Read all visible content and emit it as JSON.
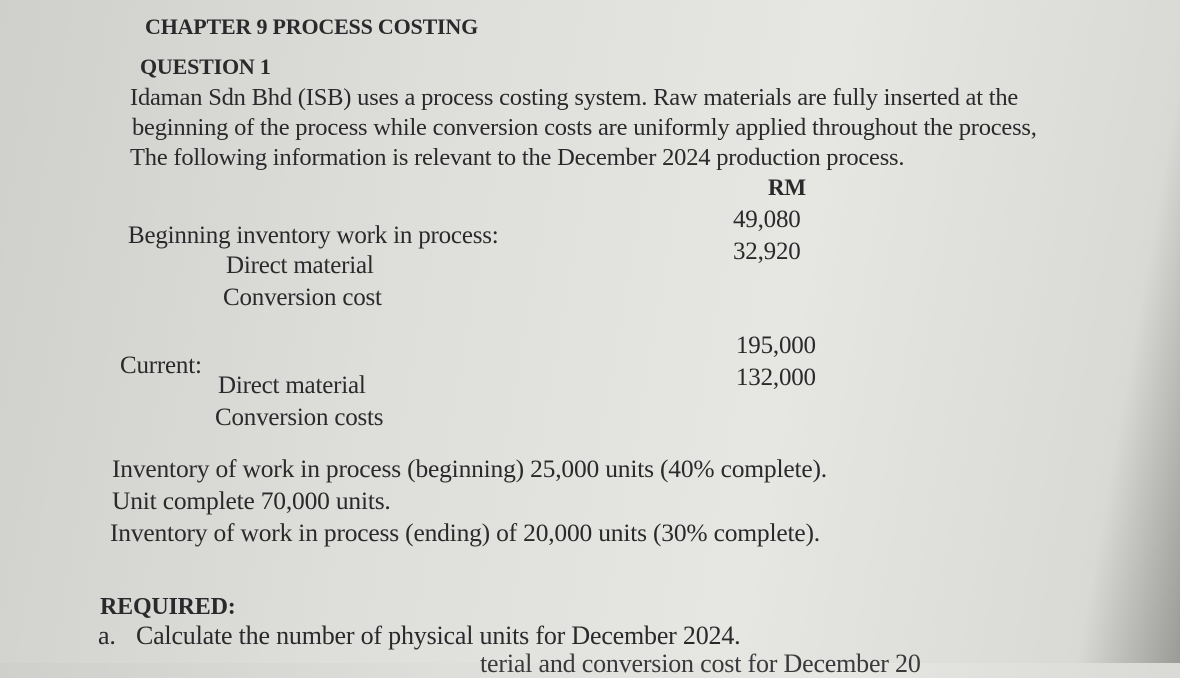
{
  "chapter_title": "CHAPTER 9  PROCESS COSTING",
  "question_label": "QUESTION 1",
  "intro_lines": [
    "Idaman Sdn Bhd (ISB) uses a process costing system.  Raw materials are fully inserted at the",
    "beginning of the process while conversion costs are uniformly applied throughout the process,",
    "The following information is relevant to the December 2024 production process."
  ],
  "currency_header": "RM",
  "beginning_inventory": {
    "heading": "Beginning inventory work in process:",
    "items": [
      {
        "label": "Direct material",
        "value": "49,080"
      },
      {
        "label": "Conversion cost",
        "value": "32,920"
      }
    ]
  },
  "current": {
    "heading": "Current:",
    "items": [
      {
        "label": "Direct material",
        "value": "195,000"
      },
      {
        "label": "Conversion costs",
        "value": "132,000"
      }
    ]
  },
  "unit_lines": [
    "Inventory of work in process (beginning) 25,000 units (40% complete).",
    "Unit complete 70,000 units.",
    "Inventory of work in process (ending) of 20,000 units (30% complete)."
  ],
  "required": {
    "heading": "REQUIRED:",
    "items": [
      {
        "marker": "a.",
        "text": "Calculate the number of physical units for December 2024."
      },
      {
        "marker": "",
        "text": "terial and conversion cost for December 20"
      }
    ]
  }
}
